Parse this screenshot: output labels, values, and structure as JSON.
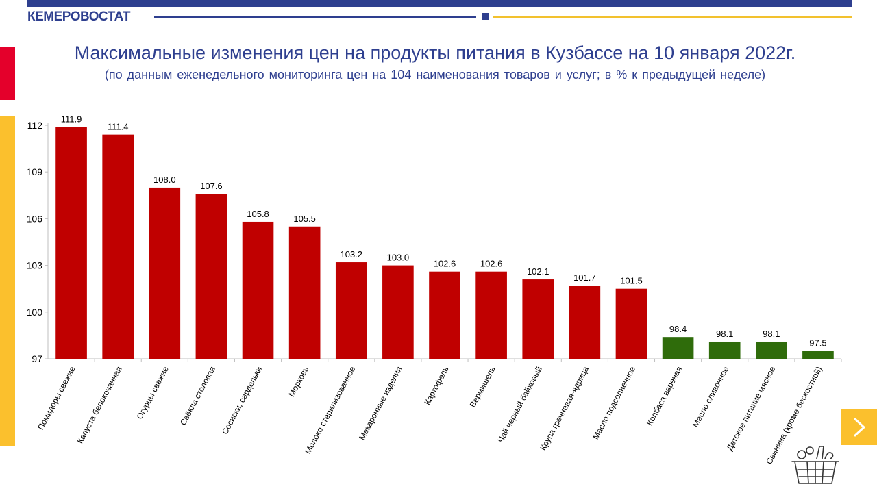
{
  "header": {
    "brand": "КЕМЕРОВОСТАТ",
    "title": "Максимальные изменения цен на продукты питания в Кузбассе на 10 января 2022г.",
    "subtitle": "(по данным еженедельного мониторинга цен на 104 наименования товаров и услуг; в % к предыдущей неделе)"
  },
  "colors": {
    "increase": "#c00000",
    "decrease": "#2f6c0b",
    "brand_blue": "#2e3f8f",
    "accent_yellow": "#fbc02d",
    "accent_red": "#e4002b"
  },
  "icons": {
    "next": "chevron-right-icon",
    "logo": "food-basket-icon"
  },
  "chart_data": {
    "type": "bar",
    "categories": [
      "Помидоры свежие",
      "Капуста белокочанная",
      "Огурцы свежие",
      "Свёкла столовая",
      "Сосиски, сардельки",
      "Морковь",
      "Молоко стерилизованное",
      "Макаронные изделия",
      "Картофель",
      "Вермишель",
      "Чай черный байховый",
      "Крупа гречневая-ядрица",
      "Масло подсолнечное",
      "Колбаса вареная",
      "Масло сливочное",
      "Детское питание мясное",
      "Свинина  (кроме бескостной)"
    ],
    "values": [
      111.9,
      111.4,
      108.0,
      107.6,
      105.8,
      105.5,
      103.2,
      103.0,
      102.6,
      102.6,
      102.1,
      101.7,
      101.5,
      98.4,
      98.1,
      98.1,
      97.5
    ],
    "data_labels": [
      "111.9",
      "111.4",
      "108.0",
      "107.6",
      "105.8",
      "105.5",
      "103.2",
      "103.0",
      "102.6",
      "102.6",
      "102.1",
      "101.7",
      "101.5",
      "98.4",
      "98.1",
      "98.1",
      "97.5"
    ],
    "y_ticks": [
      97,
      100,
      103,
      106,
      109,
      112
    ],
    "ylim": [
      97,
      112
    ],
    "grid": false,
    "legend": "none",
    "color_rule": "values above 100 red, below 100 green"
  }
}
